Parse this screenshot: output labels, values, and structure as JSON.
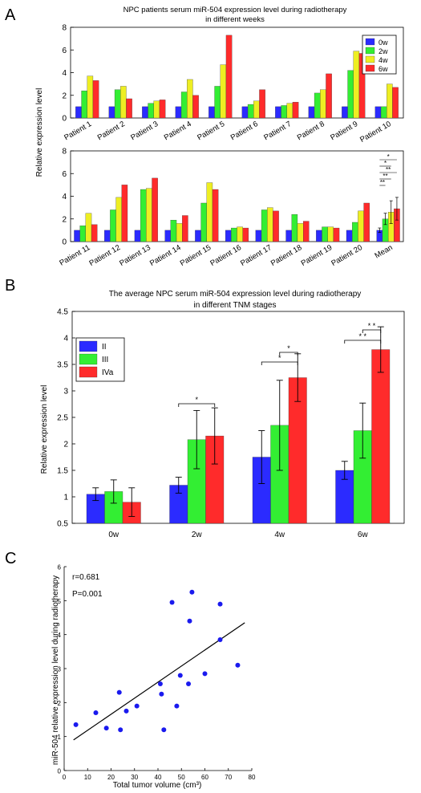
{
  "panel_labels": [
    "A",
    "B",
    "C"
  ],
  "colors": {
    "0w": "#2b2bff",
    "2w": "#33ee33",
    "4w": "#eeee22",
    "6w": "#ff2b2b",
    "II": "#2b2bff",
    "III": "#33ee33",
    "IVa": "#ff2b2b",
    "scatter": "#1a1aee"
  },
  "chart_data": [
    {
      "type": "bar",
      "title": "NPC patients serum miR-504 expression level during radiotherapy",
      "subtitle": "in different weeks",
      "ylabel": "Relative expression level",
      "ylim": [
        0,
        8
      ],
      "yticks": [
        0,
        2,
        4,
        6,
        8
      ],
      "legend": [
        "0w",
        "2w",
        "4w",
        "6w"
      ],
      "legend_position": "top-right",
      "categories": [
        "Patient 1",
        "Patient 2",
        "Patient 3",
        "Patient 4",
        "Patient 5",
        "Patient 6",
        "Patient 7",
        "Patient 8",
        "Patient 9",
        "Patient 10"
      ],
      "series": [
        {
          "name": "0w",
          "values": [
            1.0,
            1.0,
            1.0,
            1.0,
            1.0,
            1.0,
            1.0,
            1.0,
            1.0,
            1.0
          ]
        },
        {
          "name": "2w",
          "values": [
            2.4,
            2.5,
            1.3,
            2.3,
            2.8,
            1.2,
            1.1,
            2.2,
            4.2,
            1.0
          ]
        },
        {
          "name": "4w",
          "values": [
            3.7,
            2.8,
            1.5,
            3.4,
            4.7,
            1.5,
            1.3,
            2.5,
            5.9,
            3.0
          ]
        },
        {
          "name": "6w",
          "values": [
            3.3,
            1.7,
            1.6,
            2.0,
            7.3,
            2.5,
            1.4,
            3.9,
            5.7,
            2.7
          ]
        }
      ]
    },
    {
      "type": "bar",
      "ylim": [
        0,
        8
      ],
      "yticks": [
        0,
        2,
        4,
        6,
        8
      ],
      "categories": [
        "Patient 11",
        "Patient 12",
        "Patient 13",
        "Patient 14",
        "Patient 15",
        "Patient 16",
        "Patient 17",
        "Patient 18",
        "Patient 19",
        "Patient 20",
        "Mean"
      ],
      "series": [
        {
          "name": "0w",
          "values": [
            1.0,
            1.0,
            1.0,
            1.0,
            1.0,
            1.0,
            1.0,
            1.0,
            1.0,
            1.0,
            1.0
          ]
        },
        {
          "name": "2w",
          "values": [
            1.4,
            2.8,
            4.6,
            1.9,
            3.4,
            1.2,
            2.8,
            2.4,
            1.3,
            1.7,
            2.0
          ]
        },
        {
          "name": "4w",
          "values": [
            2.5,
            3.9,
            4.7,
            1.6,
            5.2,
            1.3,
            3.0,
            1.6,
            1.3,
            2.7,
            2.6
          ]
        },
        {
          "name": "6w",
          "values": [
            1.5,
            5.0,
            5.6,
            2.3,
            4.6,
            1.2,
            2.7,
            1.8,
            1.2,
            3.4,
            2.9
          ]
        }
      ],
      "mean_error": [
        0.2,
        0.5,
        1.0,
        1.0
      ],
      "significance": [
        "*",
        "*",
        "**",
        "**",
        "**"
      ]
    },
    {
      "type": "bar",
      "title": "The average NPC serum miR-504 expression level during radiotherapy",
      "subtitle": "in different TNM stages",
      "ylabel": "Relative expression level",
      "ylim": [
        0.5,
        4.5
      ],
      "yticks": [
        "0.5",
        "1",
        "1.5",
        "2",
        "2.5",
        "3",
        "3.5",
        "4",
        "4.5"
      ],
      "legend": [
        "II",
        "III",
        "IVa"
      ],
      "legend_position": "top-left",
      "categories": [
        "0w",
        "2w",
        "4w",
        "6w"
      ],
      "series": [
        {
          "name": "II",
          "values": [
            1.05,
            1.22,
            1.75,
            1.5
          ],
          "errors": [
            0.12,
            0.15,
            0.5,
            0.17
          ]
        },
        {
          "name": "III",
          "values": [
            1.1,
            2.08,
            2.35,
            2.25
          ],
          "errors": [
            0.22,
            0.55,
            0.85,
            0.52
          ]
        },
        {
          "name": "IVa",
          "values": [
            0.9,
            2.15,
            3.25,
            3.78
          ],
          "errors": [
            0.27,
            0.53,
            0.45,
            0.43
          ]
        }
      ],
      "significance": {
        "2w": [
          "*"
        ],
        "4w": [
          "*",
          "*"
        ],
        "6w": [
          "* *",
          "* *"
        ]
      }
    },
    {
      "type": "scatter",
      "xlabel": "Total tumor volume (cm³)",
      "ylabel": "miR-504 relative expression level during radiotherapy",
      "xlim": [
        0,
        80
      ],
      "ylim": [
        0,
        6
      ],
      "xticks": [
        0,
        10,
        20,
        30,
        40,
        50,
        60,
        70,
        80
      ],
      "yticks": [
        0,
        1,
        2,
        3,
        4,
        5,
        6
      ],
      "annotations": [
        "r=0.681",
        "P=0.001"
      ],
      "points": [
        [
          5,
          1.35
        ],
        [
          13.5,
          1.7
        ],
        [
          18,
          1.25
        ],
        [
          23.5,
          2.3
        ],
        [
          24,
          1.2
        ],
        [
          26.5,
          1.75
        ],
        [
          31,
          1.9
        ],
        [
          41,
          2.55
        ],
        [
          41.5,
          2.25
        ],
        [
          42.5,
          1.2
        ],
        [
          46,
          4.95
        ],
        [
          48,
          1.9
        ],
        [
          49.5,
          2.8
        ],
        [
          53,
          2.55
        ],
        [
          53.5,
          4.4
        ],
        [
          54.5,
          5.25
        ],
        [
          60,
          2.85
        ],
        [
          66.5,
          3.85
        ],
        [
          66.5,
          4.9
        ],
        [
          74,
          3.1
        ]
      ],
      "fit_line": [
        [
          4,
          0.9
        ],
        [
          77,
          4.35
        ]
      ]
    }
  ]
}
